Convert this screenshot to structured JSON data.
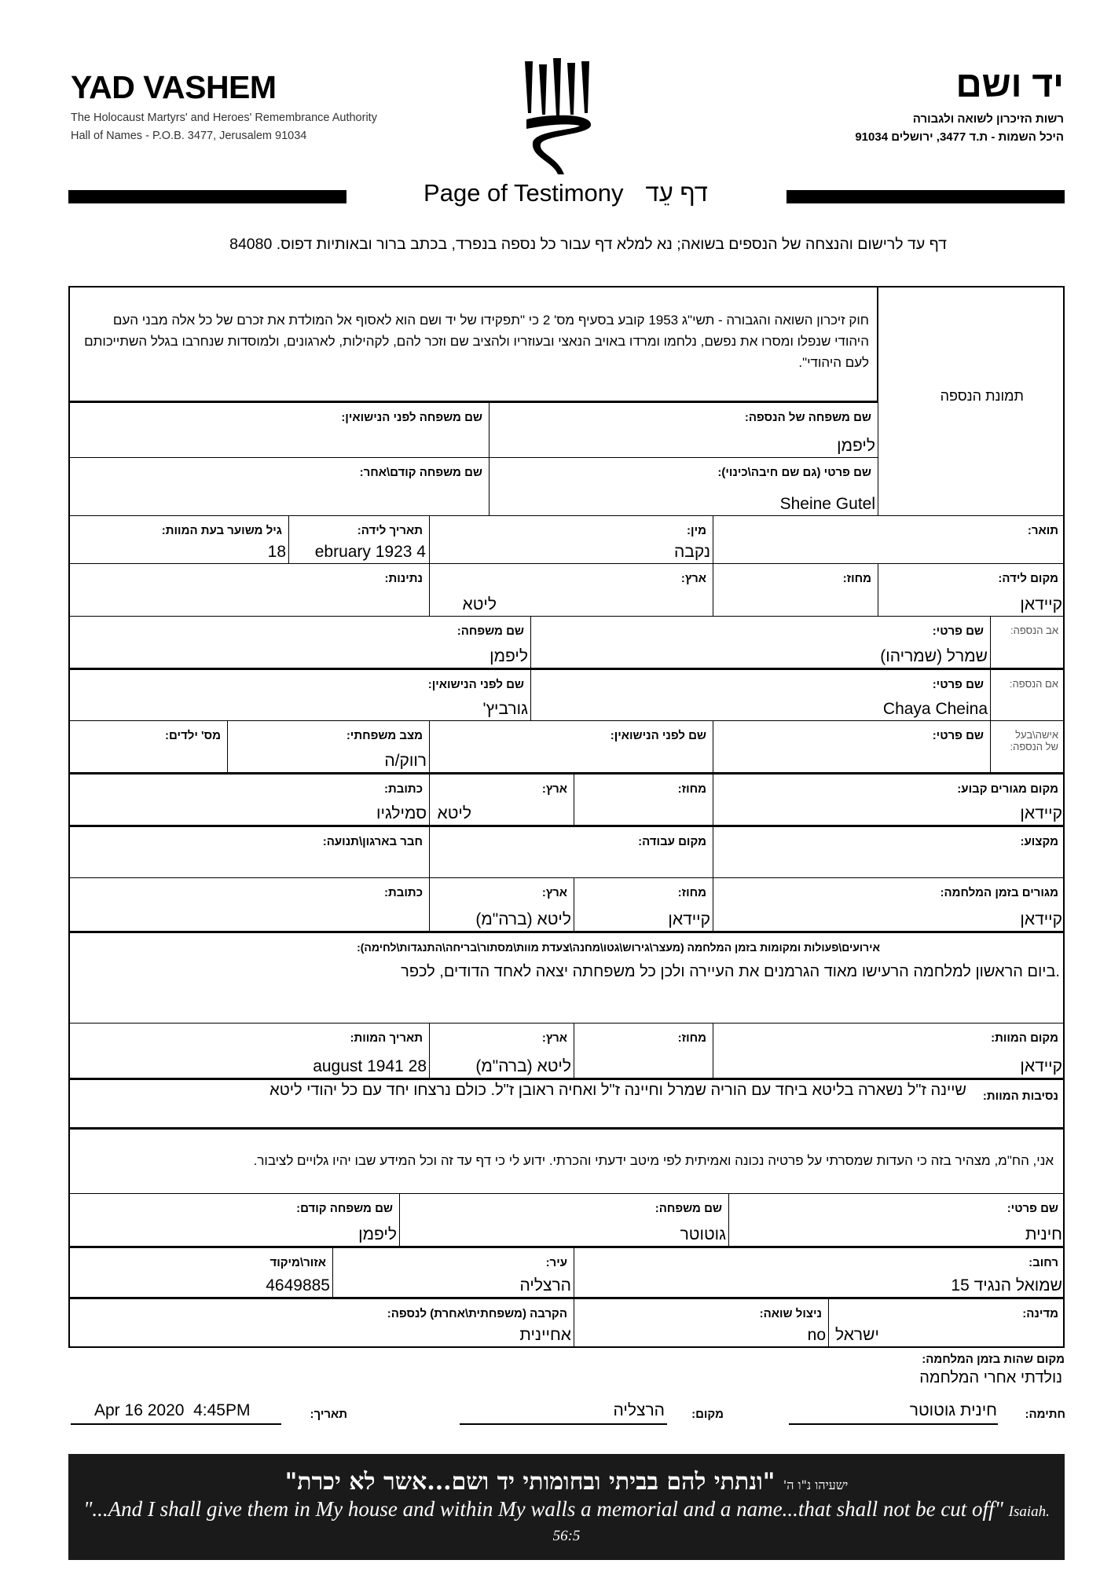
{
  "header": {
    "org_en": "YAD VASHEM",
    "authority_en": "The Holocaust Martyrs' and Heroes' Remembrance Authority",
    "address_en": "Hall of Names - P.O.B. 3477, Jerusalem 91034",
    "org_he": "יד ושם",
    "authority_he": "רשות הזיכרון לשואה ולגבורה",
    "address_he": "היכל השמות - ת.ד 3477, ירושלים 91034",
    "title_en": "Page of Testimony",
    "title_he": "דף עֵד",
    "instructions": "דף עד לרישום והנצחה של הנספים בשואה; נא למלא דף עבור כל נספה בנפרד, בכתב ברור ובאותיות דפוס. 84080"
  },
  "form": {
    "intro": "חוק זיכרון השואה והגבורה - תשי\"ג 1953 קובע בסעיף מס' 2 כי \"תפקידו של יד ושם הוא לאסוף אל המולדת את זכרם של כל אלה מבני העם היהודי שנפלו ומסרו את נפשם, נלחמו ומרדו באויב הנאצי ובעוזריו ולהציב שם וזכר להם, לקהילות, לארגונים, ולמוסדות שנחרבו בגלל השתייכותם לעם היהודי\".",
    "photo_label": "תמונת הנספה",
    "victim": {
      "family_name": {
        "label": "שם משפחה של הנספה:",
        "value": "ליפמן"
      },
      "maiden_name": {
        "label": "שם משפחה לפני הנישואין:",
        "value": ""
      },
      "first_name": {
        "label": "שם פרטי (גם שם חיבה\\כינוי):",
        "value": "Sheine Gutel"
      },
      "prev_family_name": {
        "label": "שם משפחה קודם\\אחר:",
        "value": ""
      },
      "title": {
        "label": "תואר:",
        "value": ""
      },
      "gender": {
        "label": "מין:",
        "value": "נקבה"
      },
      "birth_date": {
        "label": "תאריך לידה:",
        "value": "ebruary 1923 4"
      },
      "age_at_death": {
        "label": "גיל משוער בעת המוות:",
        "value": "18"
      },
      "birth_place": {
        "label": "מקום לידה:",
        "value": "קיידאן"
      },
      "birth_district": {
        "label": "מחוז:",
        "value": ""
      },
      "birth_country": {
        "label": "ארץ:",
        "value": "ליטא"
      },
      "nationality": {
        "label": "נתינות:",
        "value": ""
      }
    },
    "father": {
      "row_label": "אב הנספה:",
      "first_name": {
        "label": "שם פרטי:",
        "value": "שמרל (שמריהו)"
      },
      "family_name": {
        "label": "שם משפחה:",
        "value": "ליפמן"
      }
    },
    "mother": {
      "row_label": "אם הנספה:",
      "first_name": {
        "label": "שם פרטי:",
        "value": "Chaya Cheina"
      },
      "maiden_name": {
        "label": "שם לפני הנישואין:",
        "value": "גורביץ'"
      }
    },
    "spouse": {
      "row_label": "אישה\\בעל של הנספה:",
      "first_name": {
        "label": "שם פרטי:",
        "value": ""
      },
      "maiden_name": {
        "label": "שם לפני הנישואין:",
        "value": ""
      },
      "marital_status": {
        "label": "מצב משפחתי:",
        "value": "רווק/ה"
      },
      "children": {
        "label": "מס' ילדים:",
        "value": ""
      }
    },
    "residence": {
      "place": {
        "label": "מקום מגורים קבוע:",
        "value": "קיידאן"
      },
      "district": {
        "label": "מחוז:",
        "value": ""
      },
      "country": {
        "label": "ארץ:",
        "value": "ליטא"
      },
      "address": {
        "label": "כתובת:",
        "value": "סמילגיו"
      }
    },
    "work": {
      "profession": {
        "label": "מקצוע:",
        "value": ""
      },
      "workplace": {
        "label": "מקום עבודה:",
        "value": ""
      },
      "organization": {
        "label": "חבר בארגון\\תנועה:",
        "value": ""
      }
    },
    "wartime": {
      "place": {
        "label": "מגורים בזמן המלחמה:",
        "value": "קיידאן"
      },
      "district": {
        "label": "מחוז:",
        "value": "קיידאן"
      },
      "country": {
        "label": "ארץ:",
        "value": "ליטא (ברה\"מ)"
      },
      "address": {
        "label": "כתובת:",
        "value": ""
      }
    },
    "events": {
      "label": "אירועים\\פעולות ומקומות בזמן המלחמה (מעצר\\גירוש\\גטו\\מחנה\\צעדת מוות\\מסתור\\בריחה\\התנגדות\\לחימה):",
      "value": ".ביום הראשון למלחמה הרעישו מאוד הגרמנים את העיירה ולכן כל משפחתה יצאה לאחד הדודים, לכפר"
    },
    "death": {
      "place": {
        "label": "מקום המוות:",
        "value": "קיידאן"
      },
      "district": {
        "label": "מחוז:",
        "value": ""
      },
      "country": {
        "label": "ארץ:",
        "value": "ליטא (ברה\"מ)"
      },
      "date": {
        "label": "תאריך המוות:",
        "value": "august 1941 28"
      }
    },
    "circumstances": {
      "label": "נסיבות המוות:",
      "value": "שיינה ז\"ל נשארה בליטא ביחד עם הוריה שמרל וחיינה ז\"ל ואחיה ראובן ז\"ל. כולם נרצחו יחד עם כל יהודי ליטא"
    },
    "declaration": "אני, הח\"מ, מצהיר בזה כי העדות שמסרתי על פרטיה נכונה ואמיתית לפי מיטב ידעתי והכרתי. ידוע לי כי דף עד זה וכל המידע שבו יהיו גלויים לציבור.",
    "submitter": {
      "first_name": {
        "label": "שם פרטי:",
        "value": "חינית"
      },
      "family_name": {
        "label": "שם משפחה:",
        "value": "גוטוטר"
      },
      "prev_family_name": {
        "label": "שם משפחה קודם:",
        "value": "ליפמן"
      },
      "street": {
        "label": "רחוב:",
        "value": "שמואל הנגיד 15"
      },
      "city": {
        "label": "עיר:",
        "value": "הרצליה"
      },
      "zip": {
        "label": "אזור\\מיקוד",
        "value": "4649885"
      },
      "country": {
        "label": "מדינה:",
        "value": "ישראל"
      },
      "survivor": {
        "label": "ניצול שואה:",
        "value": "no"
      },
      "relation": {
        "label": "הקרבה (משפחתית\\אחרת) לנספה:",
        "value": "אחיינית"
      }
    }
  },
  "wartime_location": {
    "label": "מקום שהות בזמן המלחמה:",
    "value": "נולדתי אחרי המלחמה"
  },
  "signature": {
    "sign_label": "חתימה:",
    "sign_value": "חינית גוטוטר",
    "place_label": "מקום:",
    "place_value": "הרצליה",
    "date_label": "תאריך:",
    "date_value": "Apr 16 2020  4:45PM"
  },
  "banner": {
    "verse_he": "\"ונתתי להם בביתי ובחומותי יד ושם...אשר לא יכרת\"",
    "ref_he": "ישעיהו נ\"ו ה'",
    "verse_en": "\"...And I shall give them in My house and within My walls a memorial and a name...that shall not be cut off\"",
    "ref_en": "Isaiah. 56:5"
  },
  "colors": {
    "ink": "#000000",
    "banner_bg": "#1a1a1a",
    "banner_text": "#ffffff"
  }
}
